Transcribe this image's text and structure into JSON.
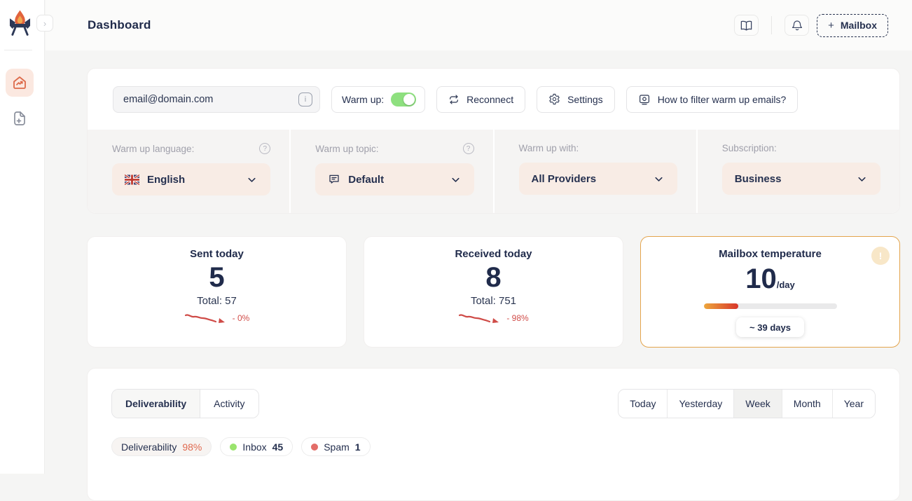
{
  "sidebar": {
    "logo_icon": "flame-envelope-logo",
    "collapse_glyph": "›",
    "nav": [
      {
        "name": "dashboard",
        "icon": "home-chart-icon",
        "active": true
      },
      {
        "name": "add-mailbox-file",
        "icon": "file-plus-icon",
        "active": false
      }
    ]
  },
  "header": {
    "title": "Dashboard",
    "docs_icon": "book-icon",
    "notifications_icon": "bell-icon",
    "mailbox_plus": "+",
    "mailbox_label": "Mailbox"
  },
  "toolbar": {
    "email_value": "email@domain.com",
    "info_glyph": "i",
    "warmup_label": "Warm up:",
    "warmup_enabled": true,
    "reconnect": "Reconnect",
    "settings": "Settings",
    "filter_help": "How to filter warm up emails?"
  },
  "options": {
    "language": {
      "label": "Warm up language:",
      "value": "English",
      "flag": "uk-flag",
      "help": "?"
    },
    "topic": {
      "label": "Warm up topic:",
      "value": "Default",
      "icon": "chat-icon",
      "help": "?"
    },
    "warm_up_with": {
      "label": "Warm up with:",
      "value": "All Providers"
    },
    "subscription": {
      "label": "Subscription:",
      "value": "Business"
    }
  },
  "stats": {
    "sent": {
      "title": "Sent today",
      "value": "5",
      "total": "Total: 57",
      "trend": "- 0%"
    },
    "received": {
      "title": "Received today",
      "value": "8",
      "total": "Total: 751",
      "trend": "- 98%"
    },
    "temperature": {
      "title": "Mailbox temperature",
      "value": "10",
      "unit": "/day",
      "progress_percent": 26,
      "eta": "~ 39 days",
      "alert_glyph": "!"
    }
  },
  "bottom": {
    "tabs": [
      {
        "label": "Deliverability"
      },
      {
        "label": "Activity"
      }
    ],
    "active_tab": "Deliverability",
    "ranges": [
      {
        "label": "Today"
      },
      {
        "label": "Yesterday"
      },
      {
        "label": "Week"
      },
      {
        "label": "Month"
      },
      {
        "label": "Year"
      }
    ],
    "active_range": "Week",
    "badges": [
      {
        "label": "Deliverability",
        "value": "98%",
        "value_color": "#e0694f"
      },
      {
        "label": "Inbox",
        "value": "45",
        "dot_color": "#9ae46d"
      },
      {
        "label": "Spam",
        "value": "1",
        "dot_color": "#e36d68"
      }
    ]
  },
  "colors": {
    "accent_orange": "#e2694a",
    "navy_text": "#25304f",
    "toggle_green": "#8ee07f",
    "trend_red": "#d14d49",
    "temperature_border": "#e3a44c",
    "dropdown_peach": "#f8ece5",
    "progress_gradient": [
      "#eda73c",
      "#d8352a"
    ]
  }
}
